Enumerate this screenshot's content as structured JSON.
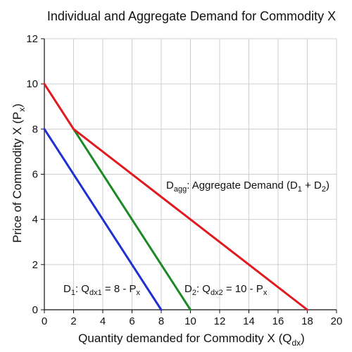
{
  "chart_data": {
    "type": "line",
    "title": "Individual and Aggregate Demand for Commodity X",
    "xlabel": {
      "main": "Quantity demanded for Commodity X (Q",
      "sub": "dx",
      "end": ")"
    },
    "ylabel": {
      "main": "Price of Commodity X (P",
      "sub": "x",
      "end": ")"
    },
    "xlim": [
      0,
      20
    ],
    "ylim": [
      0,
      12
    ],
    "x_ticks": [
      "0",
      "2",
      "4",
      "6",
      "8",
      "10",
      "12",
      "14",
      "16",
      "18",
      "20"
    ],
    "y_ticks": [
      "0",
      "2",
      "4",
      "6",
      "8",
      "10",
      "12"
    ],
    "grid": true,
    "series": [
      {
        "key": "d1",
        "color": "#1f2fd0",
        "points": [
          [
            0,
            8
          ],
          [
            8,
            0
          ]
        ],
        "label": {
          "main": "D",
          "sub1": "1",
          "mid": ": Q",
          "sub2": "dx1",
          "end": " = 8 - P",
          "sub3": "x"
        }
      },
      {
        "key": "d2",
        "color": "#1a8a24",
        "points": [
          [
            2,
            8
          ],
          [
            10,
            0
          ]
        ],
        "label": {
          "main": "D",
          "sub1": "2",
          "mid": ": Q",
          "sub2": "dx2",
          "end": " = 10 - P",
          "sub3": "x"
        }
      },
      {
        "key": "dagg",
        "color": "#e0191f",
        "points": [
          [
            0,
            10
          ],
          [
            2,
            8
          ],
          [
            18,
            0
          ]
        ],
        "label": {
          "main": "D",
          "sub1": "agg",
          "mid": ": Aggregate Demand (D",
          "sub2": "1",
          "end": " + D",
          "sub3": "2",
          "close": ")"
        }
      }
    ]
  }
}
